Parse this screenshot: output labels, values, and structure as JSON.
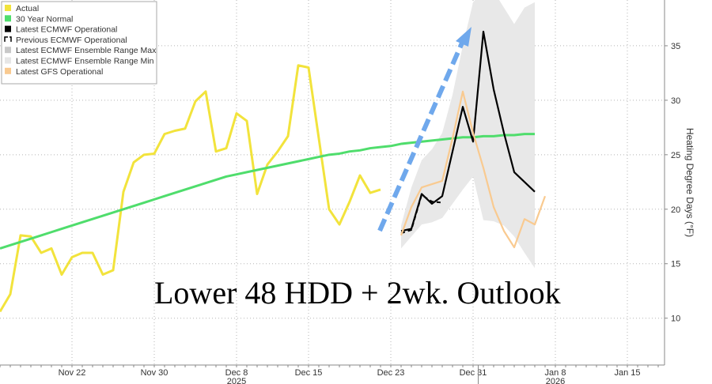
{
  "chart_data": {
    "type": "line",
    "annotation": "Lower 48 HDD + 2wk. Outlook",
    "y_axis_label": "Heating Degree Days (°F)",
    "years": [
      "2025",
      "2026"
    ],
    "categories": [
      null,
      null,
      null,
      null,
      null,
      null,
      null,
      "Nov 22",
      null,
      null,
      null,
      null,
      null,
      null,
      null,
      "Nov 30",
      null,
      null,
      null,
      null,
      null,
      null,
      null,
      "Dec 8",
      null,
      null,
      null,
      null,
      null,
      null,
      "Dec 15",
      null,
      null,
      null,
      null,
      null,
      null,
      null,
      "Dec 23",
      null,
      null,
      null,
      null,
      null,
      null,
      null,
      "Dec 31",
      null,
      null,
      null,
      null,
      null,
      null,
      null,
      "Jan 8",
      null,
      null,
      null,
      null,
      null,
      null,
      "Jan 15",
      null,
      null,
      null
    ],
    "ylim": [
      5.7,
      39.2
    ],
    "yticks": [
      10,
      15,
      20,
      25,
      30,
      35
    ],
    "grid": true,
    "legend": "top-left",
    "series": [
      {
        "name": "Actual",
        "color": "#f2e33c",
        "values": [
          10.6,
          12.2,
          17.6,
          17.5,
          16.0,
          16.4,
          14.0,
          15.6,
          16.0,
          16.0,
          14.0,
          14.4,
          21.6,
          24.3,
          25.0,
          25.1,
          26.9,
          27.2,
          27.4,
          29.9,
          30.8,
          25.3,
          25.6,
          28.8,
          28.1,
          21.4,
          24.1,
          25.3,
          26.7,
          33.2,
          33.0,
          26.5,
          20.0,
          18.6,
          20.7,
          23.1,
          21.5,
          21.8,
          null,
          null,
          null,
          null,
          null,
          null,
          null,
          null,
          null,
          null,
          null,
          null,
          null,
          null,
          null,
          null,
          null,
          null,
          null,
          null,
          null,
          null,
          null,
          null,
          null,
          null,
          null
        ]
      },
      {
        "name": "30 Year Normal",
        "color": "#4fdd6c",
        "values": [
          16.4,
          16.7,
          17.0,
          17.3,
          17.6,
          17.9,
          18.2,
          18.5,
          18.8,
          19.1,
          19.4,
          19.7,
          20.0,
          20.3,
          20.6,
          20.9,
          21.2,
          21.5,
          21.8,
          22.1,
          22.4,
          22.7,
          23.0,
          23.2,
          23.4,
          23.6,
          23.8,
          24.0,
          24.2,
          24.4,
          24.6,
          24.8,
          25.0,
          25.1,
          25.3,
          25.4,
          25.6,
          25.7,
          25.8,
          26.0,
          26.1,
          26.2,
          26.3,
          26.4,
          26.5,
          26.6,
          26.6,
          26.7,
          26.7,
          26.8,
          26.8,
          26.9,
          26.9,
          null,
          null,
          null,
          null,
          null,
          null,
          null,
          null,
          null,
          null,
          null,
          null
        ]
      },
      {
        "name": "Latest ECMWF Operational",
        "color": "#000000",
        "values": [
          null,
          null,
          null,
          null,
          null,
          null,
          null,
          null,
          null,
          null,
          null,
          null,
          null,
          null,
          null,
          null,
          null,
          null,
          null,
          null,
          null,
          null,
          null,
          null,
          null,
          null,
          null,
          null,
          null,
          null,
          null,
          null,
          null,
          null,
          null,
          null,
          null,
          null,
          null,
          18.0,
          18.2,
          21.4,
          20.5,
          21.2,
          25.3,
          29.4,
          26.2,
          36.3,
          31.0,
          27.0,
          23.4,
          22.5,
          21.6,
          null,
          null,
          null,
          null,
          null,
          null,
          null,
          null,
          null,
          null,
          null,
          null
        ]
      },
      {
        "name": "Previous ECMWF Operational",
        "color": "#000000",
        "dash": true,
        "values": [
          null,
          null,
          null,
          null,
          null,
          null,
          null,
          null,
          null,
          null,
          null,
          null,
          null,
          null,
          null,
          null,
          null,
          null,
          null,
          null,
          null,
          null,
          null,
          null,
          null,
          null,
          null,
          null,
          null,
          null,
          null,
          null,
          null,
          null,
          null,
          null,
          null,
          null,
          null,
          17.8,
          18.1,
          21.3,
          20.7,
          20.6,
          null,
          null,
          null,
          null,
          null,
          null,
          null,
          null,
          null,
          null,
          null,
          null,
          null,
          null,
          null,
          null,
          null,
          null,
          null,
          null,
          null
        ]
      },
      {
        "name": "Latest ECMWF Ensemble Range Max",
        "color": "#c8c8c8",
        "role": "range-max",
        "values": [
          null,
          null,
          null,
          null,
          null,
          null,
          null,
          null,
          null,
          null,
          null,
          null,
          null,
          null,
          null,
          null,
          null,
          null,
          null,
          null,
          null,
          null,
          null,
          null,
          null,
          null,
          null,
          null,
          null,
          null,
          null,
          null,
          null,
          null,
          null,
          null,
          null,
          null,
          null,
          18.5,
          22.0,
          24.5,
          25.5,
          27.0,
          30.5,
          35.0,
          39.0,
          40.0,
          40.0,
          38.5,
          37.0,
          38.5,
          39.0,
          null,
          null,
          null,
          null,
          null,
          null,
          null,
          null,
          null,
          null,
          null,
          null
        ]
      },
      {
        "name": "Latest ECMWF Ensemble Range Min",
        "color": "#e6e6e6",
        "role": "range-min",
        "values": [
          null,
          null,
          null,
          null,
          null,
          null,
          null,
          null,
          null,
          null,
          null,
          null,
          null,
          null,
          null,
          null,
          null,
          null,
          null,
          null,
          null,
          null,
          null,
          null,
          null,
          null,
          null,
          null,
          null,
          null,
          null,
          null,
          null,
          null,
          null,
          null,
          null,
          null,
          null,
          16.4,
          17.5,
          18.6,
          18.8,
          19.2,
          20.5,
          21.8,
          23.0,
          19.0,
          18.9,
          18.5,
          17.5,
          16.0,
          14.6,
          null,
          null,
          null,
          null,
          null,
          null,
          null,
          null,
          null,
          null,
          null,
          null
        ]
      },
      {
        "name": "Latest GFS Operational",
        "color": "#f9ca90",
        "values": [
          null,
          null,
          null,
          null,
          null,
          null,
          null,
          null,
          null,
          null,
          null,
          null,
          null,
          null,
          null,
          null,
          null,
          null,
          null,
          null,
          null,
          null,
          null,
          null,
          null,
          null,
          null,
          null,
          null,
          null,
          null,
          null,
          null,
          null,
          null,
          null,
          null,
          null,
          null,
          17.6,
          20.2,
          22.0,
          22.3,
          22.6,
          26.5,
          30.8,
          27.0,
          23.8,
          20.2,
          18.0,
          16.5,
          19.1,
          18.6,
          21.2,
          null,
          null,
          null,
          null,
          null,
          null,
          null,
          null,
          null,
          null,
          null
        ]
      }
    ]
  }
}
